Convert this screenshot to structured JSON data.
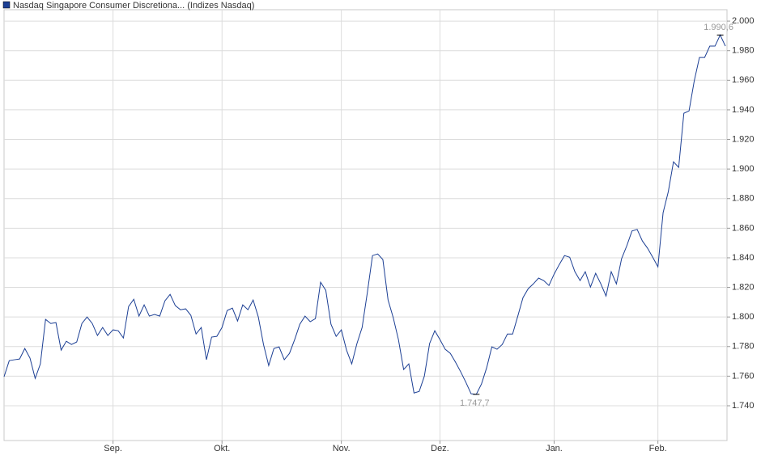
{
  "chart_data": {
    "type": "line",
    "series": [
      {
        "name": "Nasdaq Singapore Consumer Discretiona... (Indizes Nasdaq)",
        "color": "#1c3f94",
        "values": [
          1759.6,
          1770.5,
          1771.1,
          1771.6,
          1778.7,
          1772.2,
          1758.5,
          1768.3,
          1798.4,
          1795.6,
          1796.2,
          1777.6,
          1783.6,
          1781.4,
          1783.1,
          1795.6,
          1800,
          1795.6,
          1787.5,
          1792.9,
          1787.5,
          1791.3,
          1790.7,
          1785.8,
          1807.1,
          1812,
          1800.6,
          1808.2,
          1800.6,
          1801.7,
          1800.6,
          1810.9,
          1815.3,
          1807.7,
          1804.9,
          1805.5,
          1801.1,
          1788.5,
          1792.9,
          1771.1,
          1786.4,
          1786.9,
          1792.9,
          1804.4,
          1806,
          1797.3,
          1808.2,
          1804.9,
          1811.5,
          1800,
          1781.4,
          1767.2,
          1778.7,
          1779.8,
          1771.1,
          1775.4,
          1784.7,
          1795.1,
          1800.6,
          1796.8,
          1798.9,
          1823.5,
          1818,
          1795.1,
          1786.9,
          1791.3,
          1777.6,
          1768.3,
          1782,
          1792.9,
          1816.4,
          1841.5,
          1842.6,
          1838.8,
          1811.5,
          1799.5,
          1784.7,
          1764.5,
          1768.3,
          1748.6,
          1749.7,
          1760.1,
          1782,
          1790.7,
          1784.7,
          1778.2,
          1775.4,
          1769.4,
          1762.9,
          1755.8,
          1748.1,
          1747.7,
          1754.7,
          1765.7,
          1779.8,
          1778.2,
          1781.4,
          1788.5,
          1788.5,
          1800.6,
          1813.1,
          1819.1,
          1822.4,
          1826.3,
          1824.6,
          1821.3,
          1829,
          1835.5,
          1841.5,
          1840.4,
          1830.6,
          1824.6,
          1830.6,
          1820.2,
          1829.5,
          1822.4,
          1814.2,
          1830.6,
          1822.4,
          1839.4,
          1848.1,
          1858.1,
          1859.2,
          1851.4,
          1846.5,
          1840.4,
          1833.9,
          1870.5,
          1884.7,
          1904.9,
          1901.1,
          1937.7,
          1939.3,
          1959.6,
          1975.4,
          1975.4,
          1983.1,
          1983.1,
          1990.6,
          1983.1
        ]
      }
    ],
    "annotations": [
      {
        "value": 1990.6,
        "label": "1.990,6"
      },
      {
        "value": 1747.7,
        "label": "1.747,7"
      }
    ],
    "xlim": [
      0,
      139
    ],
    "xticks": [
      {
        "value": 21,
        "label": "Sep."
      },
      {
        "value": 42,
        "label": "Okt."
      },
      {
        "value": 65,
        "label": "Nov."
      },
      {
        "value": 84,
        "label": "Dez."
      },
      {
        "value": 106,
        "label": "Jan."
      },
      {
        "value": 126,
        "label": "Feb."
      }
    ],
    "ylim": [
      1716.5,
      2007.7
    ],
    "yticks": [
      {
        "value": 1740,
        "label": "1.740"
      },
      {
        "value": 1760,
        "label": "1.760"
      },
      {
        "value": 1780,
        "label": "1.780"
      },
      {
        "value": 1800,
        "label": "1.800"
      },
      {
        "value": 1820,
        "label": "1.820"
      },
      {
        "value": 1840,
        "label": "1.840"
      },
      {
        "value": 1860,
        "label": "1.860"
      },
      {
        "value": 1880,
        "label": "1.880"
      },
      {
        "value": 1900,
        "label": "1.900"
      },
      {
        "value": 1920,
        "label": "1.920"
      },
      {
        "value": 1940,
        "label": "1.940"
      },
      {
        "value": 1960,
        "label": "1.960"
      },
      {
        "value": 1980,
        "label": "1.980"
      },
      {
        "value": 2000,
        "label": "2.000"
      }
    ],
    "grid": true
  }
}
